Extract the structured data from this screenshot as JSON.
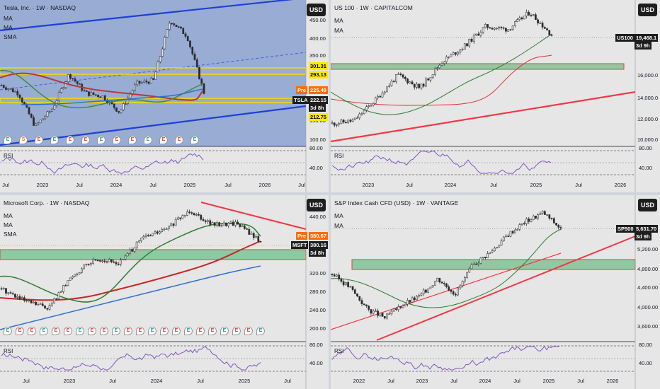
{
  "panels": [
    {
      "id": "tsla",
      "title": "Tesla, Inc. · 1W · NASDAQ",
      "indicators": [
        "MA",
        "MA",
        "SMA"
      ],
      "currency": "USD",
      "rsi_label": "RSI",
      "price_axis": [
        "450.00",
        "400.00",
        "350.00",
        "250.00",
        "150.00",
        "100.00"
      ],
      "rsi_axis": [
        "80.00",
        "40.00"
      ],
      "badges": [
        {
          "text": "301.31",
          "bg": "#ffe800",
          "fg": "#000000"
        },
        {
          "text": "293.13",
          "bg": "#ffe800",
          "fg": "#000000"
        },
        {
          "text": "Pre",
          "bg": "#ff6d00",
          "fg": "#ffffff"
        },
        {
          "text": "225.49",
          "bg": "#ff6d00",
          "fg": "#ffffff"
        },
        {
          "text": "TSLA",
          "bg": "#1e1e1e",
          "fg": "#ffffff"
        },
        {
          "text": "222.15",
          "bg": "#1e1e1e",
          "fg": "#ffffff"
        },
        {
          "text": "3d 8h",
          "bg": "#1e1e1e",
          "fg": "#ffffff"
        },
        {
          "text": "212.75",
          "bg": "#ffe800",
          "fg": "#000000"
        }
      ],
      "x_labels": [
        "Jul",
        "2023",
        "Jul",
        "2024",
        "Jul",
        "2025",
        "Jul",
        "2026",
        "Jul"
      ],
      "events": [
        "E",
        "S",
        "E",
        "E",
        "E",
        "E",
        "E",
        "E",
        "E",
        "E",
        "E",
        "E",
        "E"
      ]
    },
    {
      "id": "us100",
      "title": "US 100 · 1W · CAPITALCOM",
      "indicators": [
        "MA",
        "MA"
      ],
      "currency": "USD",
      "rsi_label": "RSI",
      "price_axis": [
        "16,000.0",
        "14,000.0",
        "12,000.0",
        "10,000.0"
      ],
      "rsi_axis": [
        "80.00",
        "40.00"
      ],
      "badges": [
        {
          "text": "US100",
          "bg": "#1e1e1e",
          "fg": "#ffffff"
        },
        {
          "text": "19,468.1",
          "bg": "#1e1e1e",
          "fg": "#ffffff"
        },
        {
          "text": "3d 9h",
          "bg": "#1e1e1e",
          "fg": "#ffffff"
        }
      ],
      "x_labels": [
        "2023",
        "Jul",
        "2024",
        "Jul",
        "2025",
        "Jul",
        "2026"
      ]
    },
    {
      "id": "msft",
      "title": "Microsoft Corp. · 1W · NASDAQ",
      "indicators": [
        "MA",
        "MA",
        "SMA"
      ],
      "currency": "USD",
      "rsi_label": "RSI",
      "price_axis": [
        "440.00",
        "320.00",
        "280.00",
        "240.00",
        "200.00"
      ],
      "rsi_axis": [
        "80.00",
        "40.00"
      ],
      "badges": [
        {
          "text": "Pre",
          "bg": "#ff6d00",
          "fg": "#ffffff"
        },
        {
          "text": "380.67",
          "bg": "#ff6d00",
          "fg": "#ffffff"
        },
        {
          "text": "MSFT",
          "bg": "#1e1e1e",
          "fg": "#ffffff"
        },
        {
          "text": "380.16",
          "bg": "#1e1e1e",
          "fg": "#ffffff"
        },
        {
          "text": "3d 8h",
          "bg": "#1e1e1e",
          "fg": "#ffffff"
        }
      ],
      "x_labels": [
        "Jul",
        "2023",
        "Jul",
        "2024",
        "Jul",
        "2025",
        "Jul"
      ],
      "events": [
        "E",
        "E",
        "E",
        "E",
        "E",
        "E",
        "E",
        "E",
        "E",
        "E",
        "E",
        "E",
        "E",
        "E",
        "E",
        "E",
        "E",
        "E",
        "E",
        "E",
        "E",
        "E"
      ]
    },
    {
      "id": "sp500",
      "title": "S&P Index Cash CFD (USD) · 1W · VANTAGE",
      "indicators": [
        "MA",
        "MA"
      ],
      "currency": "USD",
      "rsi_label": "RSI",
      "price_axis": [
        "5,200.00",
        "4,800.00",
        "4,400.00",
        "4,000.00",
        "3,600.00"
      ],
      "rsi_axis": [
        "80.00",
        "40.00"
      ],
      "badges": [
        {
          "text": "SP500",
          "bg": "#1e1e1e",
          "fg": "#ffffff"
        },
        {
          "text": "5,631.70",
          "bg": "#1e1e1e",
          "fg": "#ffffff"
        },
        {
          "text": "3d 9h",
          "bg": "#1e1e1e",
          "fg": "#ffffff"
        }
      ],
      "x_labels": [
        "2022",
        "Jul",
        "2023",
        "Jul",
        "2024",
        "Jul",
        "2025",
        "Jul",
        "2026"
      ]
    }
  ],
  "chart_data": [
    {
      "type": "line",
      "title": "Tesla, Inc. · 1W · NASDAQ",
      "x": [
        "2022-07",
        "2022-10",
        "2023-01",
        "2023-04",
        "2023-07",
        "2023-10",
        "2024-01",
        "2024-04",
        "2024-07",
        "2024-10",
        "2024-12",
        "2025-01",
        "2025-03"
      ],
      "series": [
        {
          "name": "TSLA",
          "values": [
            245,
            220,
            115,
            170,
            280,
            220,
            210,
            160,
            250,
            260,
            450,
            400,
            222
          ]
        }
      ],
      "price_levels": [
        301.31,
        293.13,
        225.49,
        222.15,
        212.75
      ],
      "ylim": [
        90,
        480
      ]
    },
    {
      "type": "line",
      "title": "US 100 · 1W · CAPITALCOM",
      "x": [
        "2022-10",
        "2023-01",
        "2023-04",
        "2023-07",
        "2023-10",
        "2024-01",
        "2024-04",
        "2024-07",
        "2024-10",
        "2025-01",
        "2025-03"
      ],
      "series": [
        {
          "name": "US100",
          "values": [
            10700,
            11000,
            13100,
            15500,
            14200,
            16800,
            18300,
            20300,
            20000,
            21700,
            19468.1
          ]
        }
      ],
      "ylim": [
        9500,
        22200
      ]
    },
    {
      "type": "line",
      "title": "Microsoft Corp. · 1W · NASDAQ",
      "x": [
        "2022-07",
        "2022-10",
        "2023-01",
        "2023-04",
        "2023-07",
        "2023-10",
        "2024-01",
        "2024-04",
        "2024-07",
        "2024-10",
        "2025-01",
        "2025-03"
      ],
      "series": [
        {
          "name": "MSFT",
          "values": [
            270,
            240,
            225,
            300,
            340,
            330,
            390,
            410,
            455,
            420,
            425,
            380.16
          ]
        }
      ],
      "price_levels": [
        380.67,
        380.16
      ],
      "ylim": [
        190,
        470
      ]
    },
    {
      "type": "line",
      "title": "S&P Index Cash CFD (USD) · 1W · VANTAGE",
      "x": [
        "2022-01",
        "2022-04",
        "2022-07",
        "2022-10",
        "2023-01",
        "2023-04",
        "2023-07",
        "2023-10",
        "2024-01",
        "2024-04",
        "2024-07",
        "2024-10",
        "2025-01",
        "2025-03"
      ],
      "series": [
        {
          "name": "SP500",
          "values": [
            4600,
            4300,
            3800,
            3600,
            3900,
            4100,
            4500,
            4150,
            4800,
            5100,
            5500,
            5800,
            6000,
            5631.7
          ]
        }
      ],
      "ylim": [
        3300,
        6200
      ]
    }
  ]
}
